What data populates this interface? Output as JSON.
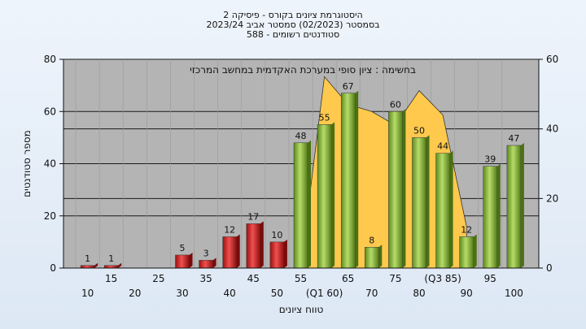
{
  "chart_data": {
    "type": "bar",
    "title_lines": [
      "היסטוגרמת ציונים בקורס - פיסיקה 2",
      "בסמסטר  (02/2023)  סמסטר אביב 2023/24",
      "סטודנטים רשומים - 588"
    ],
    "annotation": "בחשימה : ציון סופי במערכת האקדמית במחשב המרכזי",
    "xlabel": "טווח ציונים",
    "ylabel": "מספר סטודנטים",
    "ylim": [
      0,
      80
    ],
    "y_ticks": [
      0,
      20,
      40,
      60,
      80
    ],
    "y2lim": [
      0,
      60
    ],
    "y2_ticks": [
      0,
      20,
      40,
      60
    ],
    "grid": true,
    "categories": [
      "10",
      "15",
      "20",
      "25",
      "30",
      "35",
      "40",
      "45",
      "50",
      "55",
      "(Q1 60)",
      "65",
      "70",
      "75",
      "80",
      "(Q3 85)",
      "90",
      "95",
      "100"
    ],
    "values": [
      1,
      1,
      0,
      0,
      5,
      3,
      12,
      17,
      10,
      48,
      55,
      67,
      8,
      60,
      50,
      44,
      12,
      39,
      47
    ],
    "bar_labels": [
      "1",
      "1",
      "",
      "",
      "5",
      "3",
      "12",
      "17",
      "10",
      "48",
      "55",
      "67",
      "8",
      "60",
      "50",
      "44",
      "12",
      "39",
      "47"
    ],
    "colors": {
      "fail": "#d42a2a",
      "pass": "#8ebf3c",
      "area": "#ffc94d",
      "plot_bg": "#b4b4b4",
      "frame": "#dfe9f5"
    },
    "fail_threshold_category": "50",
    "area_series": {
      "y2_axis": true,
      "points": [
        {
          "x": "55",
          "y": 0
        },
        {
          "x": "(Q1 60)",
          "y": 55
        },
        {
          "x": "65",
          "y": 47
        },
        {
          "x": "70",
          "y": 45
        },
        {
          "x": "75",
          "y": 41
        },
        {
          "x": "80",
          "y": 51
        },
        {
          "x": "(Q3 85)",
          "y": 44
        },
        {
          "x": "90",
          "y": 12
        }
      ]
    }
  }
}
